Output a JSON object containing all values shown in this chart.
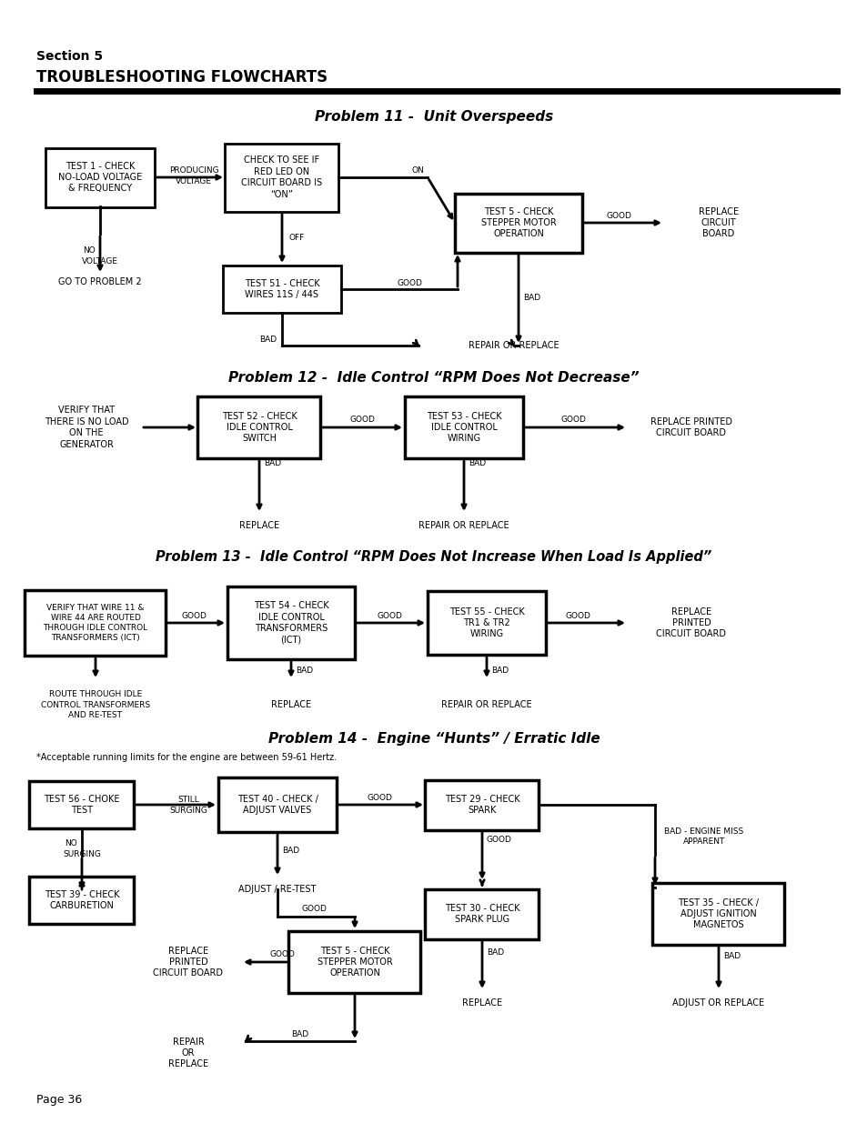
{
  "title_section": "Section 5",
  "title_main": "TROUBLESHOOTING FLOWCHARTS",
  "bg_color": "#ffffff",
  "text_color": "#000000",
  "page_label": "Page 36",
  "p11_title": "Problem 11 -  Unit Overspeeds",
  "p12_title": "Problem 12 -  Idle Control “RPM Does Not Decrease”",
  "p13_title": "Problem 13 -  Idle Control “RPM Does Not Increase When Load Is Applied”",
  "p14_title": "Problem 14 -  Engine “Hunts” / Erratic Idle",
  "p14_subtitle": "*Acceptable running limits for the engine are between 59-61 Hertz."
}
